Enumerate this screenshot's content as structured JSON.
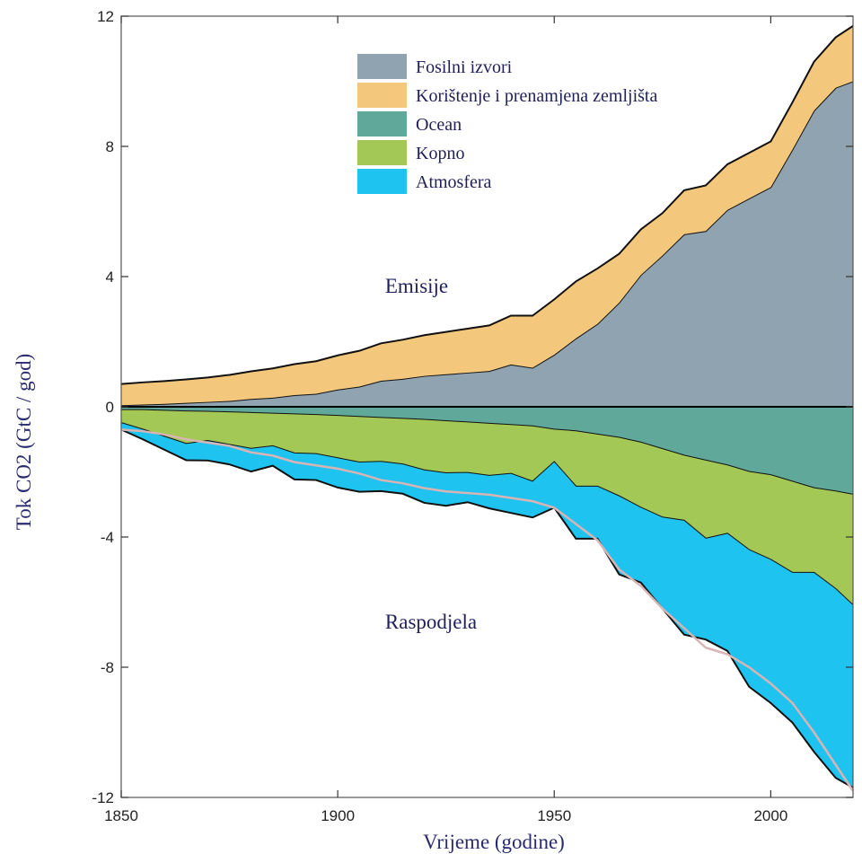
{
  "chart_data": {
    "type": "area",
    "xlabel": "Vrijeme (godine)",
    "ylabel": "Tok CO2 (GtC / god)",
    "xlim": [
      1850,
      2019
    ],
    "ylim": [
      -12,
      12
    ],
    "xticks": [
      1850,
      1900,
      1950,
      2000
    ],
    "yticks": [
      -12,
      -8,
      -4,
      0,
      4,
      8,
      12
    ],
    "grid": false,
    "legend_position": "top-center",
    "annotations": [
      {
        "text": "Emisije",
        "x": 1860,
        "y": 3.6
      },
      {
        "text": "Raspodjela",
        "x": 1860,
        "y": -6.8
      }
    ],
    "x": [
      1850,
      1855,
      1860,
      1865,
      1870,
      1875,
      1880,
      1885,
      1890,
      1895,
      1900,
      1905,
      1910,
      1915,
      1920,
      1925,
      1930,
      1935,
      1940,
      1945,
      1950,
      1955,
      1960,
      1965,
      1970,
      1975,
      1980,
      1985,
      1990,
      1995,
      2000,
      2005,
      2010,
      2015,
      2019
    ],
    "emission_series": [
      {
        "name": "Fosilni izvori",
        "color": "#8fa3b0",
        "role": "emission",
        "values": [
          0.05,
          0.07,
          0.09,
          0.12,
          0.15,
          0.18,
          0.24,
          0.28,
          0.36,
          0.4,
          0.53,
          0.62,
          0.8,
          0.86,
          0.95,
          1.0,
          1.05,
          1.1,
          1.3,
          1.2,
          1.6,
          2.1,
          2.55,
          3.2,
          4.05,
          4.65,
          5.3,
          5.4,
          6.05,
          6.4,
          6.75,
          7.9,
          9.1,
          9.8,
          10.0
        ]
      },
      {
        "name": "Korištenje i prenamjena zemljišta",
        "color": "#f4c87c",
        "role": "emission",
        "values": [
          0.65,
          0.68,
          0.7,
          0.72,
          0.75,
          0.8,
          0.85,
          0.9,
          0.95,
          1.0,
          1.05,
          1.1,
          1.15,
          1.2,
          1.25,
          1.3,
          1.35,
          1.4,
          1.5,
          1.6,
          1.7,
          1.75,
          1.7,
          1.5,
          1.4,
          1.3,
          1.35,
          1.4,
          1.4,
          1.4,
          1.4,
          1.45,
          1.5,
          1.55,
          1.7
        ]
      }
    ],
    "sink_series": [
      {
        "name": "Ocean",
        "color": "#5fa89a",
        "role": "sink",
        "values": [
          -0.1,
          -0.1,
          -0.12,
          -0.14,
          -0.15,
          -0.17,
          -0.19,
          -0.21,
          -0.23,
          -0.25,
          -0.28,
          -0.31,
          -0.34,
          -0.37,
          -0.4,
          -0.44,
          -0.48,
          -0.52,
          -0.56,
          -0.6,
          -0.7,
          -0.75,
          -0.85,
          -0.95,
          -1.1,
          -1.3,
          -1.5,
          -1.65,
          -1.8,
          -2.0,
          -2.1,
          -2.3,
          -2.5,
          -2.6,
          -2.7
        ]
      },
      {
        "name": "Kopno",
        "color": "#a3c855",
        "role": "sink",
        "values": [
          -0.4,
          -0.6,
          -0.8,
          -1.0,
          -0.9,
          -1.0,
          -1.1,
          -1.0,
          -1.2,
          -1.2,
          -1.3,
          -1.4,
          -1.35,
          -1.4,
          -1.55,
          -1.6,
          -1.55,
          -1.6,
          -1.5,
          -1.7,
          -1.0,
          -1.7,
          -1.6,
          -1.8,
          -2.0,
          -2.1,
          -2.0,
          -2.4,
          -2.1,
          -2.4,
          -2.6,
          -2.8,
          -2.6,
          -3.0,
          -3.4
        ]
      },
      {
        "name": "Atmosfera",
        "color": "#1ec3ef",
        "role": "sink",
        "values": [
          -0.2,
          -0.3,
          -0.4,
          -0.5,
          -0.6,
          -0.6,
          -0.7,
          -0.6,
          -0.8,
          -0.8,
          -0.9,
          -0.9,
          -0.9,
          -0.9,
          -1.0,
          -1.0,
          -0.9,
          -1.0,
          -1.2,
          -1.1,
          -1.4,
          -1.6,
          -1.6,
          -2.4,
          -2.3,
          -2.8,
          -3.5,
          -3.1,
          -3.6,
          -4.2,
          -4.4,
          -4.6,
          -5.5,
          -5.8,
          -5.6
        ]
      }
    ],
    "reference_line": {
      "color": "#d9b4b4",
      "values": [
        -0.7,
        -0.75,
        -0.85,
        -1.0,
        -1.1,
        -1.2,
        -1.4,
        -1.5,
        -1.7,
        -1.8,
        -1.9,
        -2.05,
        -2.25,
        -2.35,
        -2.5,
        -2.6,
        -2.65,
        -2.7,
        -2.8,
        -2.9,
        -3.1,
        -3.6,
        -4.1,
        -5.0,
        -5.5,
        -6.2,
        -6.8,
        -7.4,
        -7.6,
        -8.0,
        -8.5,
        -9.1,
        -10.0,
        -11.0,
        -11.8
      ]
    }
  }
}
